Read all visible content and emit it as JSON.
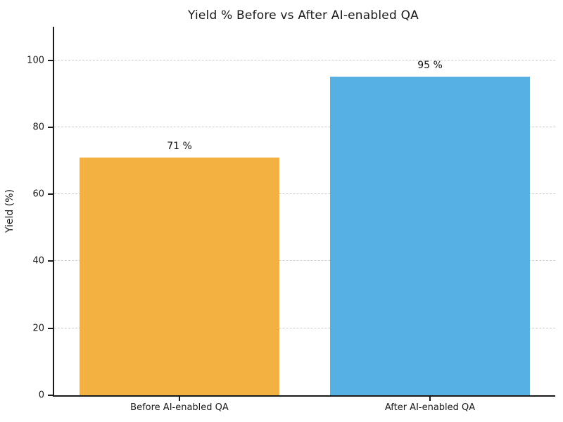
{
  "chart_data": {
    "type": "bar",
    "title": "Yield % Before vs After AI-enabled QA",
    "categories": [
      "Before AI-enabled QA",
      "After AI-enabled QA"
    ],
    "values": [
      71,
      95
    ],
    "value_labels": [
      "71 %",
      "95 %"
    ],
    "bar_colors": [
      "#F2B140",
      "#56B1E2"
    ],
    "xlabel": "",
    "ylabel": "Yield (%)",
    "ylim": [
      0,
      110
    ],
    "yticks": [
      0,
      20,
      40,
      60,
      80,
      100
    ],
    "legend": "none",
    "grid": "horizontal-dashed",
    "grid_color": "#cccccc",
    "axis_color": "#1a1a1a",
    "background_color": "#ffffff"
  }
}
